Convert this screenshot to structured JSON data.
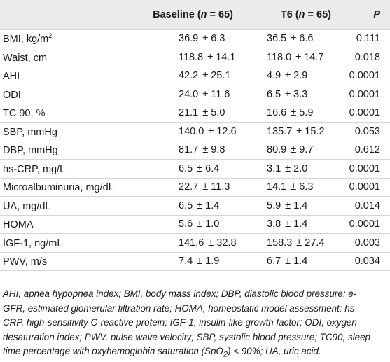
{
  "headers": {
    "variable": "",
    "baseline": "Baseline",
    "baseline_n_open": "(",
    "baseline_n": "n",
    "baseline_n_close": " = 65)",
    "t6": "T6",
    "t6_n_open": "(",
    "t6_n": "n",
    "t6_n_close": " = 65)",
    "p": "P"
  },
  "rows": [
    {
      "label": "BMI, kg/m",
      "sup": "2",
      "base_mean": "36.9",
      "base_sd": "± 6.3",
      "t6_mean": "36.5",
      "t6_sd": "± 6.6",
      "p": "0.111"
    },
    {
      "label": "Waist, cm",
      "sup": "",
      "base_mean": "118.8",
      "base_sd": "± 14.1",
      "t6_mean": "118.0",
      "t6_sd": "± 14.7",
      "p": "0.018"
    },
    {
      "label": "AHI",
      "sup": "",
      "base_mean": "42.2",
      "base_sd": "± 25.1",
      "t6_mean": "4.9",
      "t6_sd": "± 2.9",
      "p": "0.0001"
    },
    {
      "label": "ODI",
      "sup": "",
      "base_mean": "24.0",
      "base_sd": "± 11.6",
      "t6_mean": "6.5",
      "t6_sd": "± 3.3",
      "p": "0.0001"
    },
    {
      "label": "TC 90, %",
      "sup": "",
      "base_mean": "21.1",
      "base_sd": "± 5.0",
      "t6_mean": "16.6",
      "t6_sd": "± 5.9",
      "p": "0.0001"
    },
    {
      "label": "SBP, mmHg",
      "sup": "",
      "base_mean": "140.0",
      "base_sd": "± 12.6",
      "t6_mean": "135.7",
      "t6_sd": "± 15.2",
      "p": "0.053"
    },
    {
      "label": "DBP, mmHg",
      "sup": "",
      "base_mean": "81.7",
      "base_sd": "± 9.8",
      "t6_mean": "80.9",
      "t6_sd": "± 9.7",
      "p": "0.612"
    },
    {
      "label": "hs-CRP, mg/L",
      "sup": "",
      "base_mean": "6.5",
      "base_sd": "± 6.4",
      "t6_mean": "3.1",
      "t6_sd": "± 2.0",
      "p": "0.0001"
    },
    {
      "label": "Microalbuminuria, mg/dL",
      "sup": "",
      "base_mean": "22.7",
      "base_sd": "± 11.3",
      "t6_mean": "14.1",
      "t6_sd": "± 6.3",
      "p": "0.0001"
    },
    {
      "label": "UA, mg/dL",
      "sup": "",
      "base_mean": "6.5",
      "base_sd": "± 1.4",
      "t6_mean": "5.9",
      "t6_sd": "± 1.4",
      "p": "0.014"
    },
    {
      "label": "HOMA",
      "sup": "",
      "base_mean": "5.6",
      "base_sd": "± 1.0",
      "t6_mean": "3.8",
      "t6_sd": "± 1.4",
      "p": "0.0001"
    },
    {
      "label": "IGF-1, ng/mL",
      "sup": "",
      "base_mean": "141.6",
      "base_sd": "± 32.8",
      "t6_mean": "158.3",
      "t6_sd": "± 27.4",
      "p": "0.003"
    },
    {
      "label": "PWV, m/s",
      "sup": "",
      "base_mean": "7.4",
      "base_sd": "± 1.9",
      "t6_mean": "6.7",
      "t6_sd": "± 1.4",
      "p": "0.034"
    }
  ],
  "footnote": {
    "line1": "AHI, apnea hypopnea index; BMI, body mass index; DBP, diastolic blood pressure; e-",
    "line2": "GFR, estimated glomerular filtration rate; HOMA, homeostatic model assessment; hs-",
    "line3": "CRP, high-sensitivity C-reactive protein; IGF-1, insulin-like growth factor; ODI, oxygen",
    "line4": "desaturation index; PWV, pulse wave velocity; SBP, systolic blood pressure; TC90, sleep",
    "line5a": "time percentage with oxyhemoglobin saturation (SpO",
    "line5sub": "2",
    "line5b": ") < 90%; UA, uric acid."
  }
}
